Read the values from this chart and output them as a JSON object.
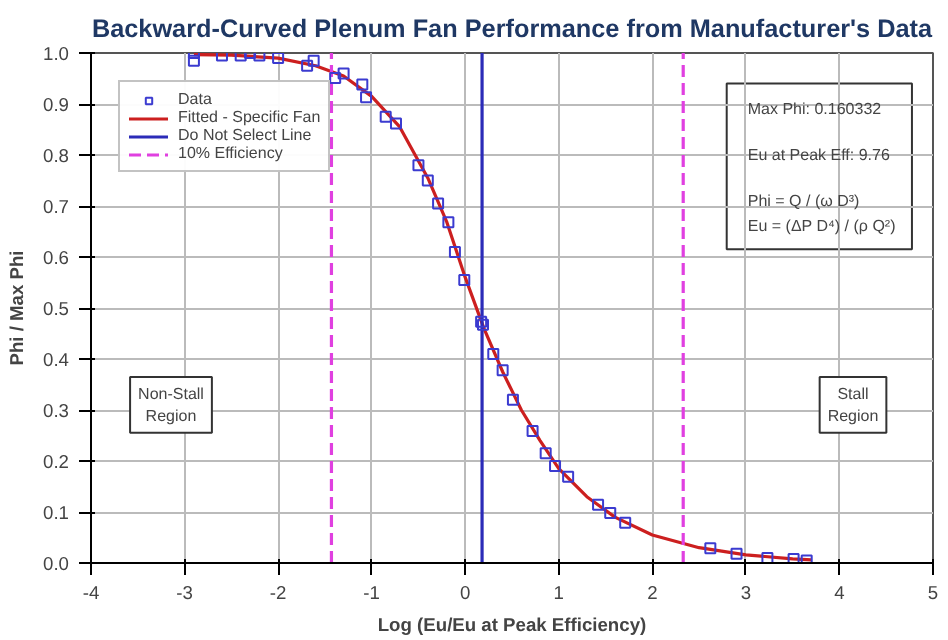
{
  "chart_data": {
    "type": "scatter",
    "title": "Backward-Curved Plenum Fan Performance from Manufacturer's Data",
    "xlabel": "Log (Eu/Eu at Peak Efficiency)",
    "ylabel": "Phi / Max Phi",
    "xlim": [
      -4,
      5
    ],
    "ylim": [
      0,
      1
    ],
    "xticks": [
      -4,
      -3,
      -2,
      -1,
      0,
      1,
      2,
      3,
      4,
      5
    ],
    "yticks": [
      {
        "value": 0,
        "label": "0.0"
      },
      0.1,
      0.2,
      0.3,
      0.4,
      0.5,
      0.6,
      0.7,
      0.8,
      0.9,
      {
        "value": 1,
        "label": "1.0"
      }
    ],
    "grid": true,
    "legend": "top left",
    "series": [
      {
        "name": "Data",
        "marker": "square",
        "color": "#3b3bd0",
        "x": [
          -2.9,
          -2.9,
          -2.6,
          -2.4,
          -2.3,
          -2.2,
          -2.0,
          -1.69,
          -1.62,
          -1.39,
          -1.3,
          -1.1,
          -1.06,
          -0.85,
          -0.74,
          -0.5,
          -0.4,
          -0.29,
          -0.18,
          -0.11,
          -0.01,
          0.17,
          0.19,
          0.3,
          0.4,
          0.51,
          0.72,
          0.86,
          0.96,
          1.1,
          1.42,
          1.55,
          1.71,
          2.62,
          2.9,
          3.23,
          3.51,
          3.65
        ],
        "values": [
          1.0,
          0.985,
          0.995,
          0.995,
          1.0,
          0.995,
          0.99,
          0.975,
          0.985,
          0.951,
          0.96,
          0.938,
          0.913,
          0.875,
          0.862,
          0.78,
          0.75,
          0.705,
          0.668,
          0.61,
          0.555,
          0.473,
          0.467,
          0.41,
          0.378,
          0.32,
          0.259,
          0.215,
          0.19,
          0.169,
          0.114,
          0.098,
          0.079,
          0.029,
          0.018,
          0.01,
          0.008,
          0.005
        ]
      },
      {
        "name": "Fitted - Specific Fan",
        "type": "line",
        "line_style": "solid",
        "color": "#cc1f1f",
        "x": [
          -2.9,
          -2.5,
          -2.0,
          -1.6,
          -1.3,
          -1.0,
          -0.7,
          -0.4,
          -0.2,
          0.0,
          0.2,
          0.4,
          0.6,
          0.8,
          1.0,
          1.3,
          1.6,
          2.0,
          2.5,
          3.0,
          3.5,
          3.7
        ],
        "values": [
          0.997,
          0.996,
          0.99,
          0.975,
          0.955,
          0.915,
          0.855,
          0.755,
          0.67,
          0.56,
          0.46,
          0.375,
          0.3,
          0.24,
          0.185,
          0.13,
          0.09,
          0.055,
          0.03,
          0.016,
          0.008,
          0.006
        ]
      },
      {
        "name": "Do Not Select Line",
        "type": "line",
        "line_style": "solid",
        "color": "#2b2bb8",
        "x": [
          0.18,
          0.18
        ],
        "values": [
          0,
          1
        ]
      },
      {
        "name": "10% Efficiency",
        "type": "line",
        "line_style": "dashed",
        "color": "#e040e0",
        "x": [
          -1.43,
          -1.43,
          null,
          2.33,
          2.33
        ],
        "values": [
          0,
          1,
          null,
          0,
          1
        ]
      }
    ],
    "annotations": [
      "Max Phi: 0.160332",
      "Eu at Peak Eff: 9.76",
      "Phi = Q / (ω D³)",
      "Eu = (ΔP D⁴) / (ρ Q²)",
      "Non-Stall Region",
      "Stall Region"
    ]
  }
}
